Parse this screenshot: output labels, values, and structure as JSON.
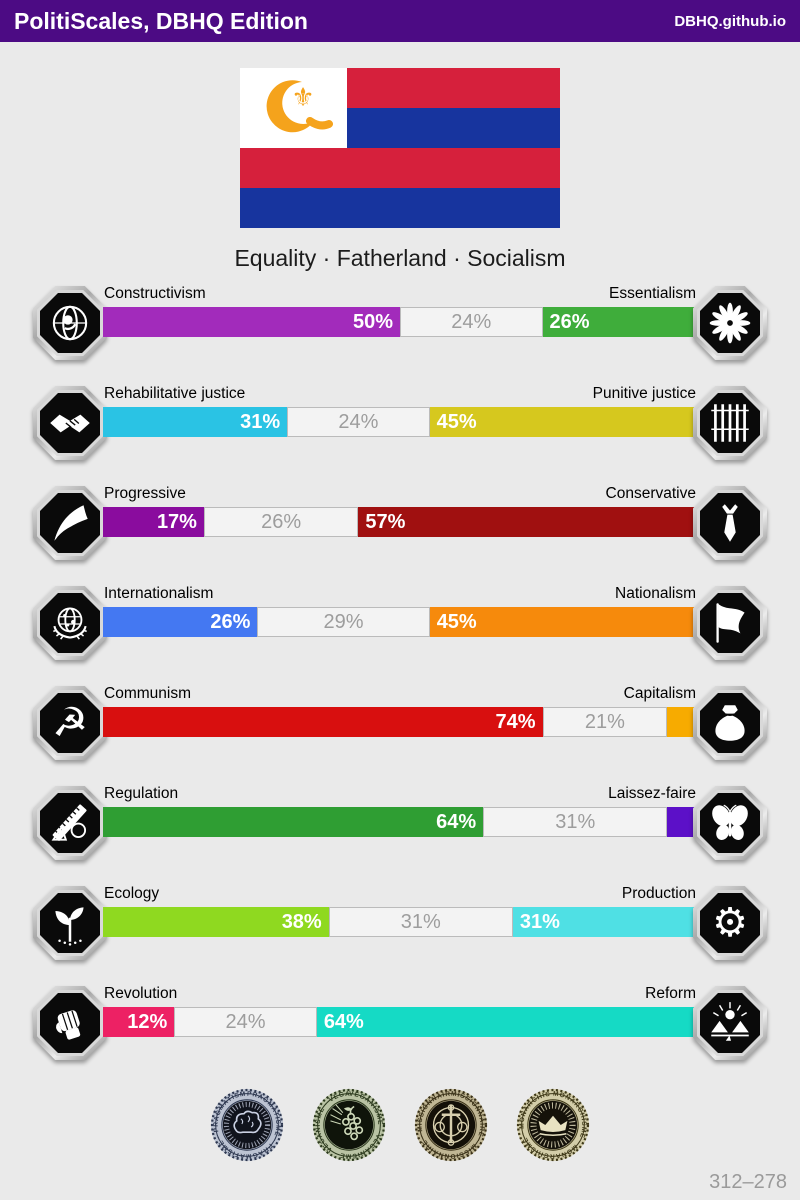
{
  "header": {
    "title": "PolitiScales, DBHQ Edition",
    "site": "DBHQ.github.io",
    "bg": "#4C0B84"
  },
  "flag": {
    "motto": "Equality · Fatherland · Socialism",
    "stripe_colors": [
      "#D6203C",
      "#17349E",
      "#D6203C",
      "#17349E"
    ],
    "canton_color": "#FFFFFF",
    "emblem": "sickle-and-fleur-de-lis",
    "emblem_color": "#F5A31C"
  },
  "axes": [
    {
      "left": {
        "label": "Constructivism",
        "pct": 50,
        "display": "50%",
        "color": "#A22BBB",
        "icon": "celestial-eye"
      },
      "neutral": {
        "pct": 24,
        "display": "24%"
      },
      "right": {
        "label": "Essentialism",
        "pct": 26,
        "display": "26%",
        "color": "#3FAD3B",
        "icon": "chrysanthemum"
      }
    },
    {
      "left": {
        "label": "Rehabilitative justice",
        "pct": 31,
        "display": "31%",
        "color": "#2AC3E4",
        "icon": "handshake"
      },
      "neutral": {
        "pct": 24,
        "display": "24%"
      },
      "right": {
        "label": "Punitive justice",
        "pct": 45,
        "display": "45%",
        "color": "#D6C81E",
        "icon": "prison-bars"
      }
    },
    {
      "left": {
        "label": "Progressive",
        "pct": 17,
        "display": "17%",
        "color": "#8A0C9E",
        "icon": "wave"
      },
      "neutral": {
        "pct": 26,
        "display": "26%"
      },
      "right": {
        "label": "Conservative",
        "pct": 57,
        "display": "57%",
        "color": "#A01010",
        "icon": "necktie"
      }
    },
    {
      "left": {
        "label": "Internationalism",
        "pct": 26,
        "display": "26%",
        "color": "#4478F2",
        "icon": "globe-wreath"
      },
      "neutral": {
        "pct": 29,
        "display": "29%"
      },
      "right": {
        "label": "Nationalism",
        "pct": 45,
        "display": "45%",
        "color": "#F68A0C",
        "icon": "waving-flag"
      }
    },
    {
      "left": {
        "label": "Communism",
        "pct": 74,
        "display": "74%",
        "color": "#D80F0F",
        "icon": "hammer-and-sickle"
      },
      "neutral": {
        "pct": 21,
        "display": "21%"
      },
      "right": {
        "label": "Capitalism",
        "pct": 5,
        "display": "",
        "color": "#F7AB00",
        "icon": "money-bag"
      }
    },
    {
      "left": {
        "label": "Regulation",
        "pct": 64,
        "display": "64%",
        "color": "#2F9E33",
        "icon": "ruler-and-shapes"
      },
      "neutral": {
        "pct": 31,
        "display": "31%"
      },
      "right": {
        "label": "Laissez-faire",
        "pct": 5,
        "display": "",
        "color": "#5C10C8",
        "icon": "butterfly"
      }
    },
    {
      "left": {
        "label": "Ecology",
        "pct": 38,
        "display": "38%",
        "color": "#8FD920",
        "icon": "sprout"
      },
      "neutral": {
        "pct": 31,
        "display": "31%"
      },
      "right": {
        "label": "Production",
        "pct": 31,
        "display": "31%",
        "color": "#4FE0E4",
        "icon": "gear"
      }
    },
    {
      "left": {
        "label": "Revolution",
        "pct": 12,
        "display": "12%",
        "color": "#ED2164",
        "icon": "raised-fist"
      },
      "neutral": {
        "pct": 24,
        "display": "24%"
      },
      "right": {
        "label": "Reform",
        "pct": 64,
        "display": "64%",
        "color": "#15DAC5",
        "icon": "landscape-sun"
      }
    }
  ],
  "badges": [
    {
      "name": "Pragmatisme",
      "ring_repeat": "PRAGMATISME · PRAGMATISME · PRAGMATISME ·",
      "motif": "brain"
    },
    {
      "name": "Veganisme",
      "ring_repeat": "VEGANISME · VEGANISME · VEGANISME · VEGANISME",
      "motif": "grapes"
    },
    {
      "name": "Missionnaire",
      "ring_repeat": "MISSIONNAIRE · MISSIONNAIRE · MISSIONNAIRE",
      "motif": "religious-symbols"
    },
    {
      "name": "Monarchisme",
      "ring_repeat": "MONARCHISME · MONARCHISME · MONARCHISME ·",
      "motif": "crown"
    }
  ],
  "footer": {
    "score": "312–278"
  }
}
